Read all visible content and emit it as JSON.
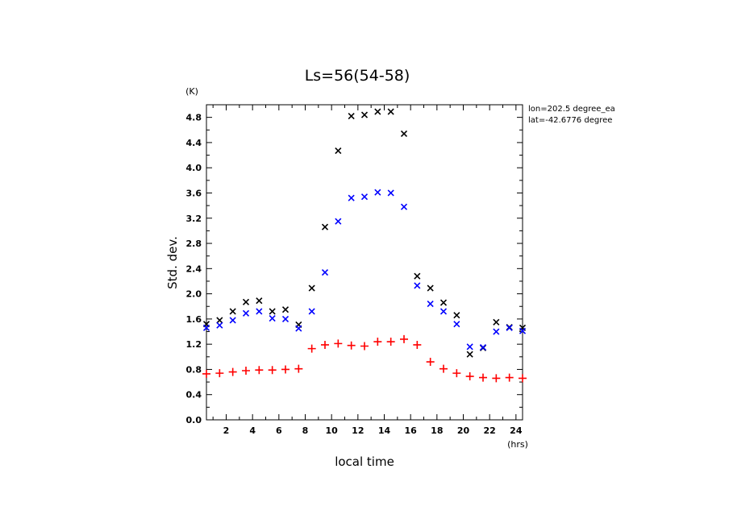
{
  "chart_data": {
    "type": "scatter",
    "title": "Ls=56(54-58)",
    "xlabel": "local time",
    "ylabel": "Std. dev.",
    "x_unit": "(hrs)",
    "y_unit": "(K)",
    "xlim": [
      0.5,
      24.5
    ],
    "ylim": [
      0.0,
      5.0
    ],
    "xticks": [
      2,
      4,
      6,
      8,
      10,
      12,
      14,
      16,
      18,
      20,
      22,
      24
    ],
    "yticks": [
      0.0,
      0.4,
      0.8,
      1.2,
      1.6,
      2.0,
      2.4,
      2.8,
      3.2,
      3.6,
      4.0,
      4.4,
      4.8
    ],
    "annotations": [
      "lon=202.5 degree_ea",
      "lat=-42.6776 degree"
    ],
    "x": [
      0.5,
      1.5,
      2.5,
      3.5,
      4.5,
      5.5,
      6.5,
      7.5,
      8.5,
      9.5,
      10.5,
      11.5,
      12.5,
      13.5,
      14.5,
      15.5,
      16.5,
      17.5,
      18.5,
      19.5,
      20.5,
      21.5,
      22.5,
      23.5,
      24.5
    ],
    "series": [
      {
        "marker": "x",
        "color": "#000000",
        "values": [
          1.52,
          1.58,
          1.72,
          1.87,
          1.89,
          1.72,
          1.75,
          1.51,
          2.09,
          3.06,
          4.27,
          4.82,
          4.84,
          4.89,
          4.89,
          4.54,
          2.28,
          2.09,
          1.86,
          1.66,
          1.04,
          1.14,
          1.55,
          1.47,
          1.46
        ]
      },
      {
        "marker": "x",
        "color": "#0000ff",
        "values": [
          1.46,
          1.5,
          1.58,
          1.69,
          1.72,
          1.61,
          1.6,
          1.45,
          1.72,
          2.34,
          3.15,
          3.52,
          3.54,
          3.61,
          3.6,
          3.38,
          2.13,
          1.84,
          1.72,
          1.52,
          1.16,
          1.15,
          1.4,
          1.46,
          1.41
        ]
      },
      {
        "marker": "+",
        "color": "#ff0000",
        "values": [
          0.73,
          0.74,
          0.76,
          0.78,
          0.79,
          0.79,
          0.8,
          0.81,
          1.13,
          1.19,
          1.21,
          1.18,
          1.17,
          1.24,
          1.24,
          1.28,
          1.19,
          0.92,
          0.81,
          0.74,
          0.69,
          0.67,
          0.66,
          0.67,
          0.66
        ]
      }
    ]
  }
}
